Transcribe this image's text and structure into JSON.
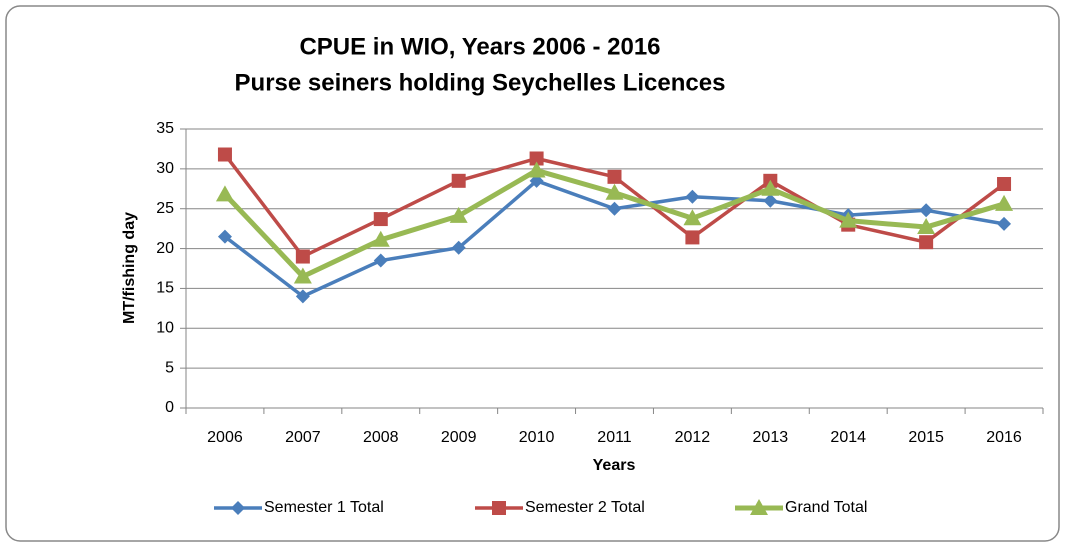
{
  "chart_data": {
    "type": "line",
    "title": "CPUE in WIO, Years 2006 - 2016",
    "subtitle": "Purse seiners holding Seychelles Licences",
    "x_label": "Years",
    "y_label": "MT/fishing day",
    "categories": [
      "2006",
      "2007",
      "2008",
      "2009",
      "2010",
      "2011",
      "2012",
      "2013",
      "2014",
      "2015",
      "2016"
    ],
    "series": [
      {
        "name": "Semester 1 Total",
        "color": "#4a7ebb",
        "marker": "diamond",
        "values": [
          21.5,
          14,
          18.5,
          20.1,
          28.5,
          25,
          26.5,
          26,
          24.2,
          24.8,
          23.1
        ]
      },
      {
        "name": "Semester 2 Total",
        "color": "#be4b48",
        "marker": "square",
        "values": [
          31.8,
          19,
          23.7,
          28.5,
          31.3,
          29,
          21.4,
          28.5,
          23,
          20.8,
          28.1
        ]
      },
      {
        "name": "Grand Total",
        "color": "#98b954",
        "marker": "triangle",
        "values": [
          26.8,
          16.5,
          21.1,
          24.1,
          29.8,
          27,
          23.8,
          27.5,
          23.5,
          22.7,
          25.6
        ]
      }
    ],
    "ylim": [
      0,
      35
    ],
    "yticks": [
      0,
      5,
      10,
      15,
      20,
      25,
      30,
      35
    ],
    "grid": true,
    "legend": "bottom"
  }
}
